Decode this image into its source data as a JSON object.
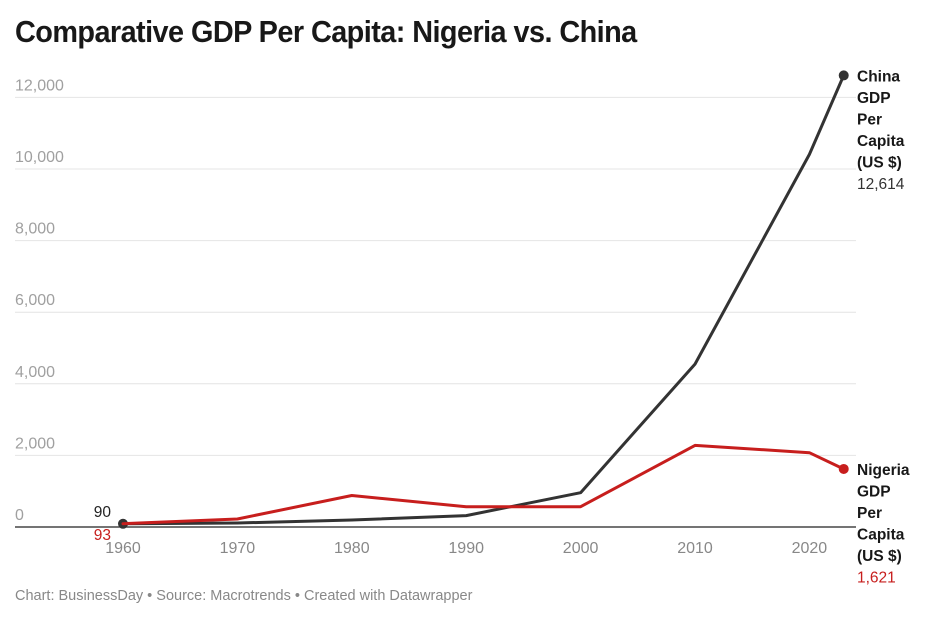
{
  "title": "Comparative GDP Per Capita: Nigeria vs. China",
  "footer": "Chart: BusinessDay • Source: Macrotrends • Created with Datawrapper",
  "chart_data": {
    "type": "line",
    "title": "Comparative GDP Per Capita: Nigeria vs. China",
    "xlabel": "",
    "ylabel": "",
    "xlim": [
      1960,
      2023
    ],
    "ylim": [
      0,
      12614
    ],
    "x_ticks": [
      "1960",
      "1970",
      "1980",
      "1990",
      "2000",
      "2010",
      "2020"
    ],
    "y_ticks": [
      {
        "value": 0,
        "label": "0"
      },
      {
        "value": 2000,
        "label": "2,000"
      },
      {
        "value": 4000,
        "label": "4,000"
      },
      {
        "value": 6000,
        "label": "6,000"
      },
      {
        "value": 8000,
        "label": "8,000"
      },
      {
        "value": 10000,
        "label": "10,000"
      },
      {
        "value": 12000,
        "label": "12,000"
      }
    ],
    "grid": true,
    "legend": "direct labels at line ends (right)",
    "series": [
      {
        "name": "China GDP Per Capita (US $)",
        "label_lines": [
          "China",
          "GDP",
          "Per",
          "Capita",
          "(US $)"
        ],
        "color": "#333333",
        "x": [
          1960,
          1970,
          1980,
          1990,
          2000,
          2010,
          2020,
          2023
        ],
        "values": [
          90,
          113,
          195,
          318,
          959,
          4550,
          10409,
          12614
        ],
        "start_label": "90",
        "end_label": "12,614"
      },
      {
        "name": "Nigeria GDP Per Capita (US $)",
        "label_lines": [
          "Nigeria",
          "GDP",
          "Per",
          "Capita",
          "(US $)"
        ],
        "color": "#c71e1d",
        "x": [
          1960,
          1970,
          1980,
          1990,
          2000,
          2010,
          2020,
          2023
        ],
        "values": [
          93,
          224,
          880,
          567,
          568,
          2280,
          2075,
          1621
        ],
        "start_label": "93",
        "end_label": "1,621"
      }
    ]
  }
}
